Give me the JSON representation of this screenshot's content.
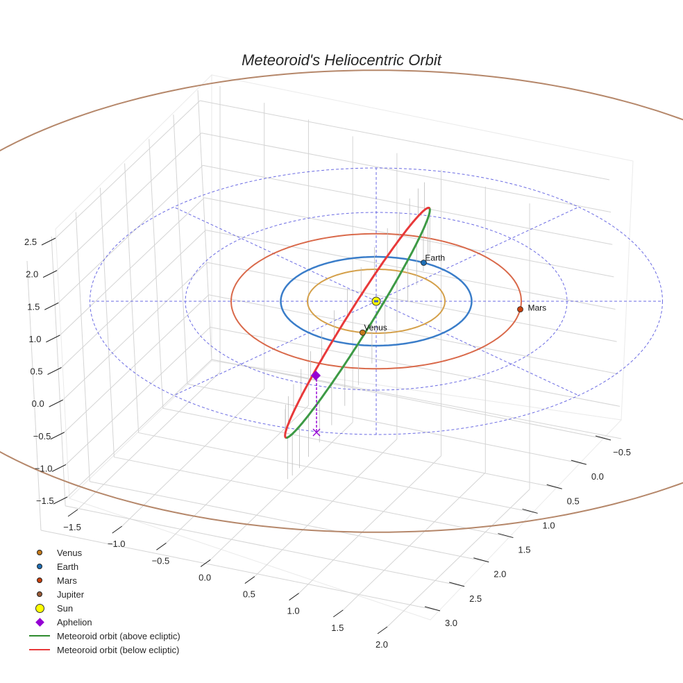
{
  "chart_data": {
    "type": "line3d",
    "title": "Meteoroid's Heliocentric Orbit",
    "axes": {
      "x": {
        "ticks": [
          "−1.5",
          "−1.0",
          "−0.5",
          "0.0",
          "0.5",
          "1.0",
          "1.5",
          "2.0"
        ],
        "range": [
          -1.8,
          2.4
        ]
      },
      "y": {
        "ticks": [
          "−0.5",
          "0.0",
          "0.5",
          "1.0",
          "1.5",
          "2.0",
          "2.5",
          "3.0"
        ],
        "range": [
          -0.8,
          3.2
        ]
      },
      "z": {
        "ticks": [
          "−1.5",
          "−1.0",
          "−0.5",
          "0.0",
          "0.5",
          "1.0",
          "1.5",
          "2.0",
          "2.5"
        ],
        "range": [
          -1.6,
          2.7
        ]
      },
      "grid": true
    },
    "planets": [
      {
        "name": "Venus",
        "orbit_radius_au": 0.72,
        "color": "#D4A04A",
        "marker_color": "#C57A1A",
        "show_label": true
      },
      {
        "name": "Earth",
        "orbit_radius_au": 1.0,
        "color": "#3A7DC9",
        "marker_color": "#1F6FB5",
        "show_label": true
      },
      {
        "name": "Mars",
        "orbit_radius_au": 1.52,
        "color": "#D9694A",
        "marker_color": "#C8400E",
        "show_label": true
      },
      {
        "name": "Jupiter",
        "orbit_radius_au": 5.2,
        "color": "#B5876A",
        "marker_color": "#9A5A36",
        "show_label": false
      }
    ],
    "reference_circles_au": [
      2.0,
      3.0
    ],
    "reference_color": "#5A5AE0",
    "sun": {
      "name": "Sun",
      "color": "#FFFF00"
    },
    "aphelion": {
      "name": "Aphelion",
      "color": "#9400D3"
    },
    "meteoroid": {
      "above_color": "#3D9A45",
      "below_color": "#E8393A",
      "above_label": "Meteoroid orbit (above ecliptic)",
      "below_label": "Meteoroid orbit (below ecliptic)"
    },
    "legend": {
      "placement": "bottom-left",
      "entries": [
        {
          "label": "Venus",
          "kind": "dot",
          "color": "#C57A1A"
        },
        {
          "label": "Earth",
          "kind": "dot",
          "color": "#1F6FB5"
        },
        {
          "label": "Mars",
          "kind": "dot",
          "color": "#C8400E"
        },
        {
          "label": "Jupiter",
          "kind": "dot",
          "color": "#9A5A36"
        },
        {
          "label": "Sun",
          "kind": "sun",
          "color": "#FFFF00"
        },
        {
          "label": "Aphelion",
          "kind": "diamond",
          "color": "#9400D3"
        },
        {
          "label": "Meteoroid orbit (above ecliptic)",
          "kind": "line",
          "color": "#2E8B2E"
        },
        {
          "label": "Meteoroid orbit (below ecliptic)",
          "kind": "line",
          "color": "#E8393A"
        }
      ]
    }
  }
}
